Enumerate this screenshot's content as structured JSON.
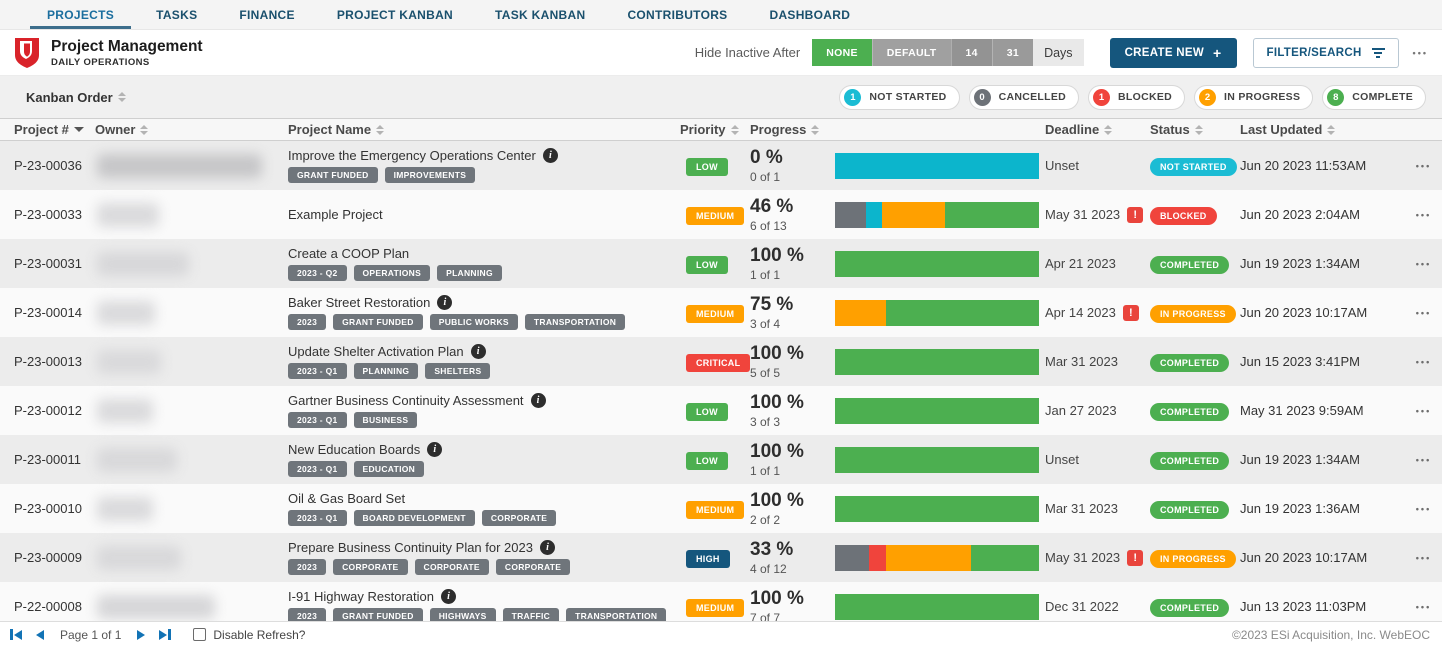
{
  "nav": {
    "tabs": [
      {
        "label": "PROJECTS",
        "active": true
      },
      {
        "label": "TASKS",
        "active": false
      },
      {
        "label": "FINANCE",
        "active": false
      },
      {
        "label": "PROJECT KANBAN",
        "active": false
      },
      {
        "label": "TASK KANBAN",
        "active": false
      },
      {
        "label": "CONTRIBUTORS",
        "active": false
      },
      {
        "label": "DASHBOARD",
        "active": false
      }
    ]
  },
  "header": {
    "title": "Project Management",
    "subtitle": "DAILY OPERATIONS",
    "hide_inactive_label": "Hide Inactive After",
    "hide_inactive_options": [
      {
        "label": "NONE",
        "color": "#4caf50",
        "selected": true
      },
      {
        "label": "DEFAULT",
        "color": "#a0a0a0",
        "selected": false
      },
      {
        "label": "14",
        "color": "#939393",
        "selected": false
      },
      {
        "label": "31",
        "color": "#9a9a9a",
        "selected": false
      }
    ],
    "days_label": "Days",
    "create_new_label": "CREATE NEW",
    "create_new_plus": "+",
    "filter_label": "FILTER/SEARCH"
  },
  "icons": {
    "more_horizontal": "•••",
    "info": "i",
    "warning": "!"
  },
  "toolbar": {
    "kanban_order_label": "Kanban Order",
    "status_summary": [
      {
        "count": "1",
        "label": "NOT STARTED",
        "color": "#1bbcd4"
      },
      {
        "count": "0",
        "label": "CANCELLED",
        "color": "#6d7278"
      },
      {
        "count": "1",
        "label": "BLOCKED",
        "color": "#f0443c"
      },
      {
        "count": "2",
        "label": "IN PROGRESS",
        "color": "#ffa000"
      },
      {
        "count": "8",
        "label": "COMPLETE",
        "color": "#4caf50"
      }
    ]
  },
  "table": {
    "columns": [
      {
        "label": "Project #",
        "sorted": "desc"
      },
      {
        "label": "Owner",
        "sorted": "none"
      },
      {
        "label": "Project Name",
        "sorted": "none"
      },
      {
        "label": "Priority",
        "sorted": "none"
      },
      {
        "label": "Progress",
        "sorted": "none"
      },
      {
        "label": "Deadline",
        "sorted": "none"
      },
      {
        "label": "Status",
        "sorted": "none"
      },
      {
        "label": "Last Updated",
        "sorted": "none"
      }
    ],
    "rows": [
      {
        "id": "P-23-00036",
        "owner_redacted": true,
        "owner_blur_width": 165,
        "owner_blur_shade": "#c6c6c8",
        "name": "Improve the Emergency Operations Center",
        "has_info": true,
        "tags": [
          "GRANT FUNDED",
          "IMPROVEMENTS"
        ],
        "priority": "LOW",
        "priority_color": "#4caf50",
        "progress_pct": "0 %",
        "progress_count": "0 of 1",
        "bar": [
          {
            "color": "#0cb5cc",
            "pct": 100
          }
        ],
        "deadline": "Unset",
        "deadline_warning": false,
        "status": "NOT STARTED",
        "status_color": "#1bbcd4",
        "last_updated": "Jun 20 2023 11:53AM"
      },
      {
        "id": "P-23-00033",
        "owner_redacted": true,
        "owner_blur_width": 62,
        "owner_blur_shade": "#dadadc",
        "name": "Example Project",
        "has_info": false,
        "tags": [],
        "priority": "MEDIUM",
        "priority_color": "#ffa000",
        "progress_pct": "46 %",
        "progress_count": "6 of 13",
        "bar": [
          {
            "color": "#6d7278",
            "pct": 15.4
          },
          {
            "color": "#0cb5cc",
            "pct": 7.7
          },
          {
            "color": "#ffa000",
            "pct": 30.8
          },
          {
            "color": "#4caf50",
            "pct": 46.1
          }
        ],
        "deadline": "May 31 2023",
        "deadline_warning": true,
        "status": "BLOCKED",
        "status_color": "#f0443c",
        "last_updated": "Jun 20 2023 2:04AM"
      },
      {
        "id": "P-23-00031",
        "owner_redacted": true,
        "owner_blur_width": 92,
        "owner_blur_shade": "#d7d7d9",
        "name": "Create a COOP Plan",
        "has_info": false,
        "tags": [
          "2023 - Q2",
          "OPERATIONS",
          "PLANNING"
        ],
        "priority": "LOW",
        "priority_color": "#4caf50",
        "progress_pct": "100 %",
        "progress_count": "1 of 1",
        "bar": [
          {
            "color": "#4caf50",
            "pct": 100
          }
        ],
        "deadline": "Apr 21 2023",
        "deadline_warning": false,
        "status": "COMPLETED",
        "status_color": "#4caf50",
        "last_updated": "Jun 19 2023 1:34AM"
      },
      {
        "id": "P-23-00014",
        "owner_redacted": true,
        "owner_blur_width": 58,
        "owner_blur_shade": "#dadadc",
        "name": "Baker Street Restoration",
        "has_info": true,
        "tags": [
          "2023",
          "GRANT FUNDED",
          "PUBLIC WORKS",
          "TRANSPORTATION"
        ],
        "priority": "MEDIUM",
        "priority_color": "#ffa000",
        "progress_pct": "75 %",
        "progress_count": "3 of 4",
        "bar": [
          {
            "color": "#ffa000",
            "pct": 25
          },
          {
            "color": "#4caf50",
            "pct": 75
          }
        ],
        "deadline": "Apr 14 2023",
        "deadline_warning": true,
        "status": "IN PROGRESS",
        "status_color": "#ffa000",
        "last_updated": "Jun 20 2023 10:17AM"
      },
      {
        "id": "P-23-00013",
        "owner_redacted": true,
        "owner_blur_width": 64,
        "owner_blur_shade": "#d9d9db",
        "name": "Update Shelter Activation Plan",
        "has_info": true,
        "tags": [
          "2023 - Q1",
          "PLANNING",
          "SHELTERS"
        ],
        "priority": "CRITICAL",
        "priority_color": "#f0443c",
        "progress_pct": "100 %",
        "progress_count": "5 of 5",
        "bar": [
          {
            "color": "#4caf50",
            "pct": 100
          }
        ],
        "deadline": "Mar 31 2023",
        "deadline_warning": false,
        "status": "COMPLETED",
        "status_color": "#4caf50",
        "last_updated": "Jun 15 2023 3:41PM"
      },
      {
        "id": "P-23-00012",
        "owner_redacted": true,
        "owner_blur_width": 56,
        "owner_blur_shade": "#dadadc",
        "name": "Gartner Business Continuity Assessment",
        "has_info": true,
        "tags": [
          "2023 - Q1",
          "BUSINESS"
        ],
        "priority": "LOW",
        "priority_color": "#4caf50",
        "progress_pct": "100 %",
        "progress_count": "3 of 3",
        "bar": [
          {
            "color": "#4caf50",
            "pct": 100
          }
        ],
        "deadline": "Jan 27 2023",
        "deadline_warning": false,
        "status": "COMPLETED",
        "status_color": "#4caf50",
        "last_updated": "May 31 2023 9:59AM"
      },
      {
        "id": "P-23-00011",
        "owner_redacted": true,
        "owner_blur_width": 80,
        "owner_blur_shade": "#d8d8da",
        "name": "New Education Boards",
        "has_info": true,
        "tags": [
          "2023 - Q1",
          "EDUCATION"
        ],
        "priority": "LOW",
        "priority_color": "#4caf50",
        "progress_pct": "100 %",
        "progress_count": "1 of 1",
        "bar": [
          {
            "color": "#4caf50",
            "pct": 100
          }
        ],
        "deadline": "Unset",
        "deadline_warning": false,
        "status": "COMPLETED",
        "status_color": "#4caf50",
        "last_updated": "Jun 19 2023 1:34AM"
      },
      {
        "id": "P-23-00010",
        "owner_redacted": true,
        "owner_blur_width": 56,
        "owner_blur_shade": "#dadadc",
        "name": "Oil & Gas Board Set",
        "has_info": false,
        "tags": [
          "2023 - Q1",
          "BOARD DEVELOPMENT",
          "CORPORATE"
        ],
        "priority": "MEDIUM",
        "priority_color": "#ffa000",
        "progress_pct": "100 %",
        "progress_count": "2 of 2",
        "bar": [
          {
            "color": "#4caf50",
            "pct": 100
          }
        ],
        "deadline": "Mar 31 2023",
        "deadline_warning": false,
        "status": "COMPLETED",
        "status_color": "#4caf50",
        "last_updated": "Jun 19 2023 1:36AM"
      },
      {
        "id": "P-23-00009",
        "owner_redacted": true,
        "owner_blur_width": 84,
        "owner_blur_shade": "#d8d8da",
        "name": "Prepare Business Continuity Plan for 2023",
        "has_info": true,
        "tags": [
          "2023",
          "CORPORATE",
          "CORPORATE",
          "CORPORATE"
        ],
        "priority": "HIGH",
        "priority_color": "#15567d",
        "progress_pct": "33 %",
        "progress_count": "4 of 12",
        "bar": [
          {
            "color": "#6d7278",
            "pct": 16.7
          },
          {
            "color": "#f0443c",
            "pct": 8.3
          },
          {
            "color": "#ffa000",
            "pct": 41.7
          },
          {
            "color": "#4caf50",
            "pct": 33.3
          }
        ],
        "deadline": "May 31 2023",
        "deadline_warning": true,
        "status": "IN PROGRESS",
        "status_color": "#ffa000",
        "last_updated": "Jun 20 2023 10:17AM"
      },
      {
        "id": "P-22-00008",
        "owner_redacted": true,
        "owner_blur_width": 118,
        "owner_blur_shade": "#d6d6d8",
        "name": "I-91 Highway Restoration",
        "has_info": true,
        "tags": [
          "2023",
          "GRANT FUNDED",
          "HIGHWAYS",
          "TRAFFIC",
          "TRANSPORTATION"
        ],
        "priority": "MEDIUM",
        "priority_color": "#ffa000",
        "progress_pct": "100 %",
        "progress_count": "7 of 7",
        "bar": [
          {
            "color": "#4caf50",
            "pct": 100
          }
        ],
        "deadline": "Dec 31 2022",
        "deadline_warning": false,
        "status": "COMPLETED",
        "status_color": "#4caf50",
        "last_updated": "Jun 13 2023 11:03PM"
      }
    ]
  },
  "footer": {
    "page_label": "Page 1 of 1",
    "disable_refresh_label": "Disable Refresh?",
    "copyright": "©2023 ESi Acquisition, Inc. WebEOC"
  }
}
